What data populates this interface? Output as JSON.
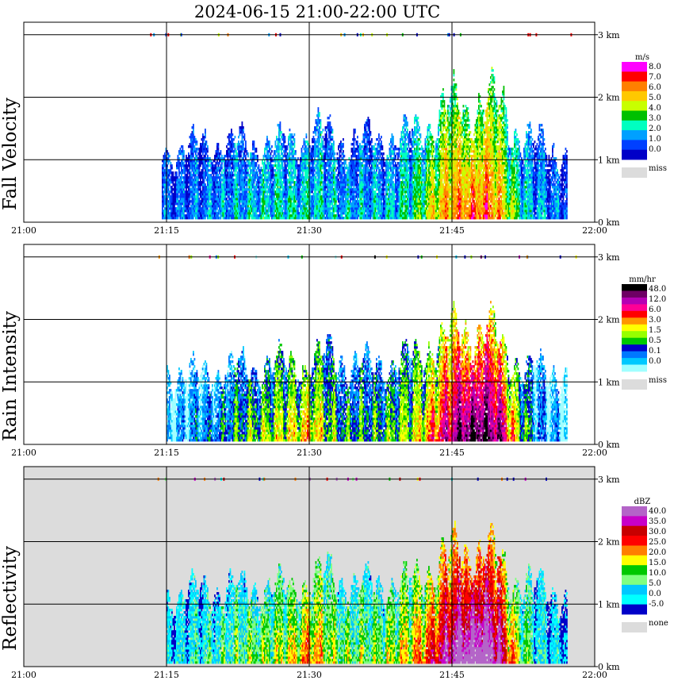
{
  "title": "2024-06-15   21:00-22:00 UTC",
  "colors": {
    "missing": "#dcdcdc",
    "grid": "#000000",
    "background": "#ffffff"
  },
  "chart_data": [
    {
      "type": "heatmap",
      "name": "fall-velocity",
      "ylabel": "Fall Velocity",
      "x_ticks": [
        "21:00",
        "21:15",
        "21:30",
        "21:45",
        "22:00"
      ],
      "y_ticks": [
        "0 km",
        "1 km",
        "2 km",
        "3 km"
      ],
      "xlim_minutes": [
        0,
        60
      ],
      "ylim_km": [
        0,
        3.2
      ],
      "grid": true,
      "legend": {
        "unit": "m/s",
        "placement": "right",
        "labels": [
          "8.0",
          "7.0",
          "6.0",
          "5.0",
          "4.0",
          "3.0",
          "2.0",
          "1.0",
          "0.0"
        ],
        "colors": [
          "#ff00ff",
          "#ff0000",
          "#ff7f00",
          "#ffc800",
          "#c8ff00",
          "#00c000",
          "#00ffc0",
          "#00a0ff",
          "#0040ff",
          "#0000c8"
        ],
        "missing_label": "miss"
      },
      "echo_top_km": [
        {
          "t": 14.5,
          "top": 1.3
        },
        {
          "t": 17,
          "top": 1.4
        },
        {
          "t": 20,
          "top": 1.45
        },
        {
          "t": 23,
          "top": 1.5
        },
        {
          "t": 26,
          "top": 1.45
        },
        {
          "t": 29,
          "top": 1.6
        },
        {
          "t": 31,
          "top": 1.7
        },
        {
          "t": 34,
          "top": 1.5
        },
        {
          "t": 37,
          "top": 1.55
        },
        {
          "t": 40,
          "top": 1.6
        },
        {
          "t": 42,
          "top": 1.8
        },
        {
          "t": 44,
          "top": 2.1
        },
        {
          "t": 46,
          "top": 2.2
        },
        {
          "t": 48,
          "top": 2.2
        },
        {
          "t": 50,
          "top": 2.2
        },
        {
          "t": 52,
          "top": 1.6
        },
        {
          "t": 55,
          "top": 1.4
        },
        {
          "t": 57,
          "top": 1.3
        }
      ],
      "intensity_profile": [
        {
          "t": 15,
          "v": 0.15
        },
        {
          "t": 20,
          "v": 0.2
        },
        {
          "t": 25,
          "v": 0.3
        },
        {
          "t": 30,
          "v": 0.3
        },
        {
          "t": 33,
          "v": 0.25
        },
        {
          "t": 38,
          "v": 0.25
        },
        {
          "t": 41,
          "v": 0.35
        },
        {
          "t": 43,
          "v": 0.55
        },
        {
          "t": 45,
          "v": 0.65
        },
        {
          "t": 47,
          "v": 0.7
        },
        {
          "t": 49,
          "v": 0.7
        },
        {
          "t": 51,
          "v": 0.5
        },
        {
          "t": 53,
          "v": 0.25
        },
        {
          "t": 57,
          "v": 0.15
        }
      ],
      "background_missing": false
    },
    {
      "type": "heatmap",
      "name": "rain-intensity",
      "ylabel": "Rain Intensity",
      "x_ticks": [
        "21:00",
        "21:15",
        "21:30",
        "21:45",
        "22:00"
      ],
      "y_ticks": [
        "0 km",
        "1 km",
        "2 km",
        "3 km"
      ],
      "xlim_minutes": [
        0,
        60
      ],
      "ylim_km": [
        0,
        3.2
      ],
      "grid": true,
      "legend": {
        "unit": "mm/hr",
        "placement": "right",
        "labels": [
          "48.0",
          "12.0",
          "6.0",
          "3.0",
          "1.5",
          "0.5",
          "0.1",
          "0.0"
        ],
        "colors": [
          "#000000",
          "#6e0064",
          "#b400b4",
          "#ff0096",
          "#ff0000",
          "#ff9600",
          "#ffff00",
          "#96ff00",
          "#00c800",
          "#0000c8",
          "#0078ff",
          "#00c8ff",
          "#a0ffff"
        ],
        "missing_label": "miss"
      },
      "echo_top_km": [
        {
          "t": 15,
          "top": 1.35
        },
        {
          "t": 18,
          "top": 1.3
        },
        {
          "t": 21,
          "top": 1.4
        },
        {
          "t": 24,
          "top": 1.45
        },
        {
          "t": 27,
          "top": 1.5
        },
        {
          "t": 30,
          "top": 1.5
        },
        {
          "t": 32,
          "top": 1.7
        },
        {
          "t": 35,
          "top": 1.5
        },
        {
          "t": 38,
          "top": 1.5
        },
        {
          "t": 41,
          "top": 1.6
        },
        {
          "t": 43,
          "top": 1.9
        },
        {
          "t": 45,
          "top": 2.1
        },
        {
          "t": 47,
          "top": 2.15
        },
        {
          "t": 49,
          "top": 2.15
        },
        {
          "t": 51,
          "top": 1.6
        },
        {
          "t": 54,
          "top": 1.4
        },
        {
          "t": 57,
          "top": 1.35
        }
      ],
      "intensity_profile": [
        {
          "t": 15,
          "v": 0.08
        },
        {
          "t": 20,
          "v": 0.2
        },
        {
          "t": 24,
          "v": 0.35
        },
        {
          "t": 27,
          "v": 0.4
        },
        {
          "t": 30,
          "v": 0.5
        },
        {
          "t": 33,
          "v": 0.3
        },
        {
          "t": 37,
          "v": 0.3
        },
        {
          "t": 41,
          "v": 0.4
        },
        {
          "t": 44,
          "v": 0.65
        },
        {
          "t": 46,
          "v": 0.8
        },
        {
          "t": 48,
          "v": 0.85
        },
        {
          "t": 50,
          "v": 0.75
        },
        {
          "t": 52,
          "v": 0.4
        },
        {
          "t": 54,
          "v": 0.15
        },
        {
          "t": 57,
          "v": 0.08
        }
      ],
      "background_missing": false
    },
    {
      "type": "heatmap",
      "name": "reflectivity",
      "ylabel": "Reflectivity",
      "x_ticks": [
        "21:00",
        "21:15",
        "21:30",
        "21:45",
        "22:00"
      ],
      "y_ticks": [
        "0 km",
        "1 km",
        "2 km",
        "3 km"
      ],
      "xlim_minutes": [
        0,
        60
      ],
      "ylim_km": [
        0,
        3.2
      ],
      "grid": true,
      "legend": {
        "unit": "dBZ",
        "placement": "right",
        "labels": [
          "40.0",
          "35.0",
          "30.0",
          "25.0",
          "20.0",
          "15.0",
          "10.0",
          "5.0",
          "0.0",
          "-5.0"
        ],
        "colors": [
          "#b464c8",
          "#c800c8",
          "#c80000",
          "#ff0000",
          "#ff7f00",
          "#ffff00",
          "#00c800",
          "#80ff80",
          "#00c8ff",
          "#00ffff",
          "#0000c8"
        ],
        "missing_label": "none"
      },
      "echo_top_km": [
        {
          "t": 15,
          "top": 1.3
        },
        {
          "t": 18,
          "top": 1.4
        },
        {
          "t": 21,
          "top": 1.45
        },
        {
          "t": 24,
          "top": 1.5
        },
        {
          "t": 27,
          "top": 1.45
        },
        {
          "t": 30,
          "top": 1.6
        },
        {
          "t": 32,
          "top": 1.75
        },
        {
          "t": 35,
          "top": 1.5
        },
        {
          "t": 38,
          "top": 1.55
        },
        {
          "t": 41,
          "top": 1.6
        },
        {
          "t": 43,
          "top": 1.9
        },
        {
          "t": 45,
          "top": 2.1
        },
        {
          "t": 47,
          "top": 2.15
        },
        {
          "t": 49,
          "top": 2.2
        },
        {
          "t": 51,
          "top": 1.7
        },
        {
          "t": 54,
          "top": 1.45
        },
        {
          "t": 57,
          "top": 1.3
        }
      ],
      "intensity_profile": [
        {
          "t": 15,
          "v": 0.15
        },
        {
          "t": 20,
          "v": 0.25
        },
        {
          "t": 24,
          "v": 0.35
        },
        {
          "t": 27,
          "v": 0.4
        },
        {
          "t": 30,
          "v": 0.55
        },
        {
          "t": 33,
          "v": 0.35
        },
        {
          "t": 37,
          "v": 0.35
        },
        {
          "t": 41,
          "v": 0.5
        },
        {
          "t": 44,
          "v": 0.75
        },
        {
          "t": 46,
          "v": 0.9
        },
        {
          "t": 48,
          "v": 0.95
        },
        {
          "t": 50,
          "v": 0.8
        },
        {
          "t": 52,
          "v": 0.4
        },
        {
          "t": 54,
          "v": 0.2
        },
        {
          "t": 57,
          "v": 0.12
        }
      ],
      "background_missing": true
    }
  ]
}
